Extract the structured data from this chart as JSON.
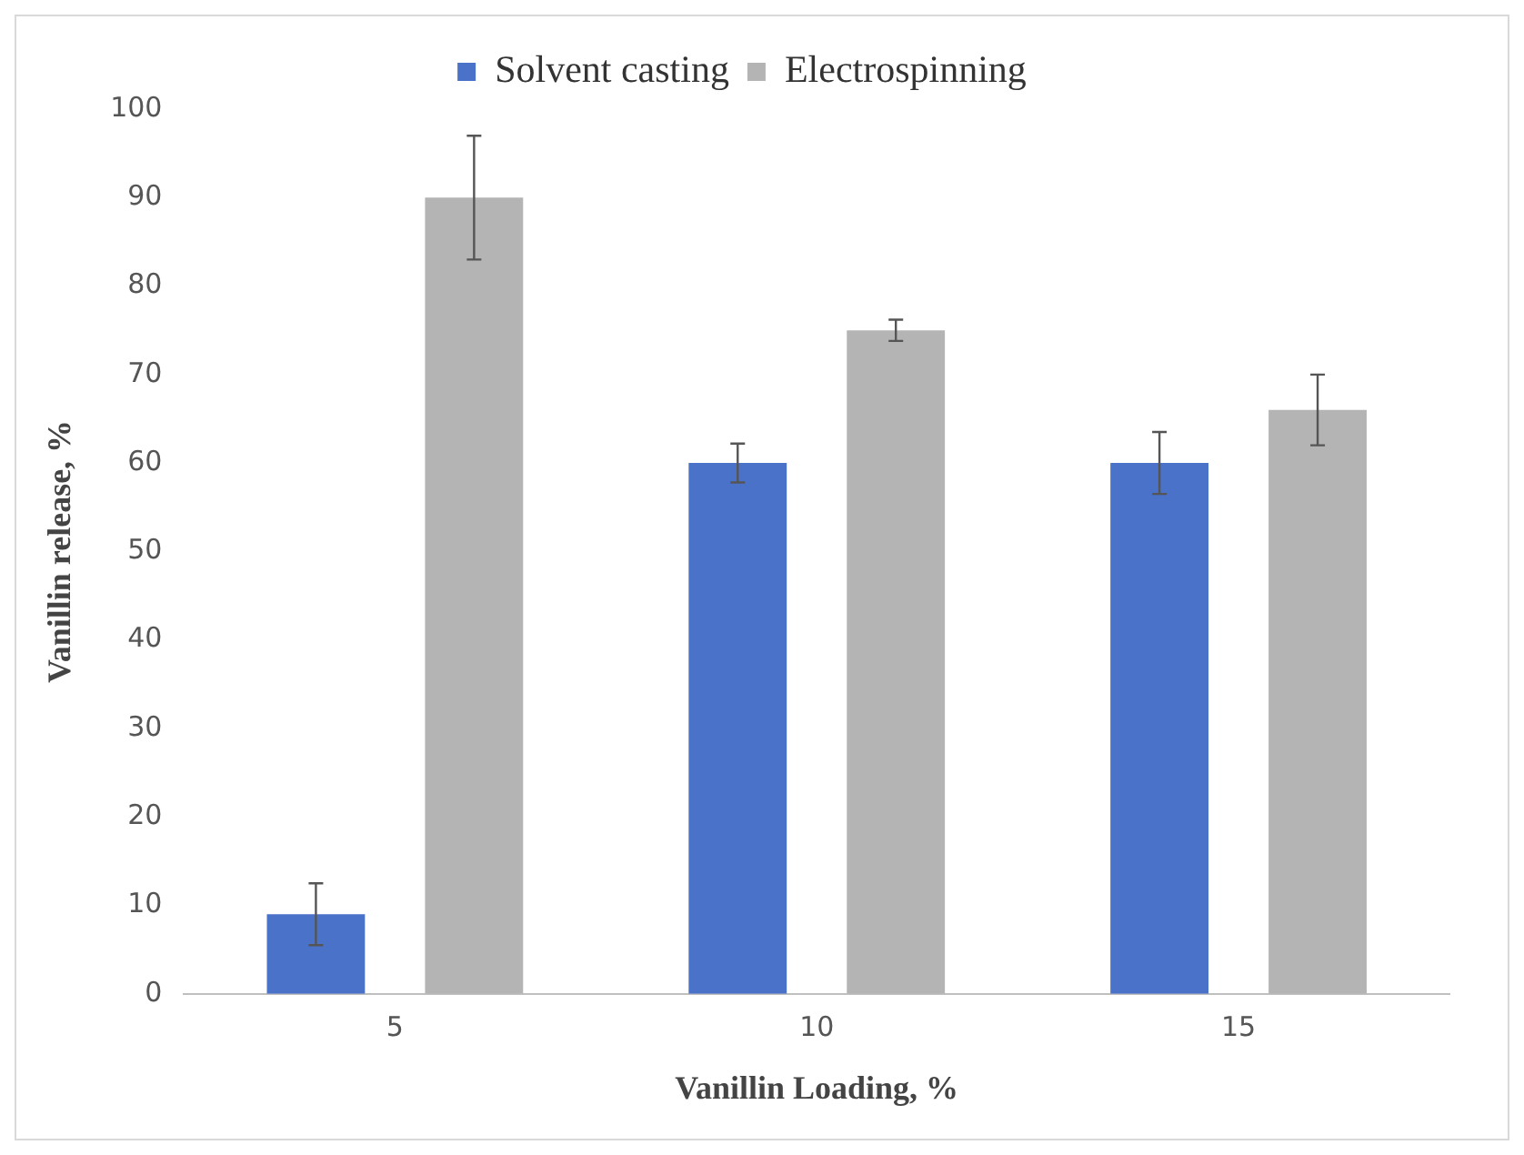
{
  "chart_data": {
    "type": "bar",
    "xlabel": "Vanillin Loading, %",
    "ylabel": "Vanillin release, %",
    "categories": [
      "5",
      "10",
      "15"
    ],
    "series": [
      {
        "name": "Solvent casting",
        "color": "#4a72c8",
        "values": [
          9,
          60,
          60
        ],
        "errors": [
          3.5,
          2.2,
          3.5
        ]
      },
      {
        "name": "Electrospinning",
        "color": "#b4b4b4",
        "values": [
          90,
          75,
          66
        ],
        "errors": [
          7,
          1.2,
          4
        ]
      }
    ],
    "ylim": [
      0,
      100
    ],
    "yticks": [
      0,
      10,
      20,
      30,
      40,
      50,
      60,
      70,
      80,
      90,
      100
    ],
    "grid": false,
    "legend": "top"
  }
}
